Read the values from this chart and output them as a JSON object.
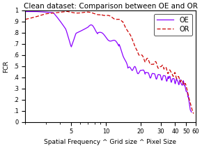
{
  "title": "Clean dataset: Comparison between OE and OR",
  "xlabel": "Spatial Frequency ^ Grid size ^ Pixel Size",
  "ylabel": "FCR",
  "xlim": [
    2,
    60
  ],
  "ylim": [
    0,
    1.0
  ],
  "oe_color": "#8B00FF",
  "or_color": "#CC0000",
  "title_fontsize": 7.5,
  "axis_fontsize": 6.5,
  "tick_fontsize": 6,
  "legend_fontsize": 7,
  "linewidth_oe": 0.9,
  "linewidth_or": 0.9
}
